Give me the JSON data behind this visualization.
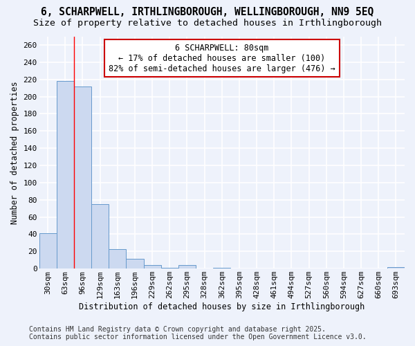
{
  "title_line1": "6, SCHARPWELL, IRTHLINGBOROUGH, WELLINGBOROUGH, NN9 5EQ",
  "title_line2": "Size of property relative to detached houses in Irthlingborough",
  "xlabel": "Distribution of detached houses by size in Irthlingborough",
  "ylabel": "Number of detached properties",
  "categories": [
    "30sqm",
    "63sqm",
    "96sqm",
    "129sqm",
    "163sqm",
    "196sqm",
    "229sqm",
    "262sqm",
    "295sqm",
    "328sqm",
    "362sqm",
    "395sqm",
    "428sqm",
    "461sqm",
    "494sqm",
    "527sqm",
    "560sqm",
    "594sqm",
    "627sqm",
    "660sqm",
    "693sqm"
  ],
  "values": [
    41,
    218,
    212,
    75,
    23,
    11,
    4,
    1,
    4,
    0,
    1,
    0,
    0,
    0,
    0,
    0,
    0,
    0,
    0,
    0,
    2
  ],
  "bar_color": "#ccd9f0",
  "bar_edge_color": "#6699cc",
  "red_line_x": 1.5,
  "annotation_title": "6 SCHARPWELL: 80sqm",
  "annotation_line2": "← 17% of detached houses are smaller (100)",
  "annotation_line3": "82% of semi-detached houses are larger (476) →",
  "annotation_box_color": "#ffffff",
  "annotation_box_edge": "#cc0000",
  "footnote_line1": "Contains HM Land Registry data © Crown copyright and database right 2025.",
  "footnote_line2": "Contains public sector information licensed under the Open Government Licence v3.0.",
  "ylim": [
    0,
    270
  ],
  "yticks": [
    0,
    20,
    40,
    60,
    80,
    100,
    120,
    140,
    160,
    180,
    200,
    220,
    240,
    260
  ],
  "background_color": "#eef2fb",
  "grid_color": "#ffffff",
  "title_fontsize": 10.5,
  "subtitle_fontsize": 9.5,
  "footnote_fontsize": 7.0,
  "axis_label_fontsize": 8.5,
  "tick_fontsize": 8.0,
  "annot_fontsize": 8.5
}
